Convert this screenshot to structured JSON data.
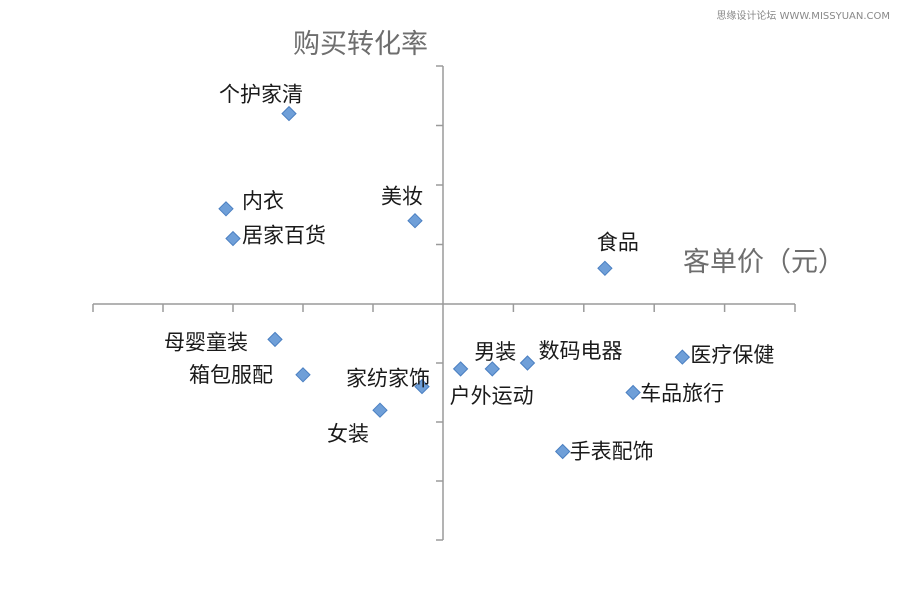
{
  "watermark": "思缘设计论坛 WWW.MISSYUAN.COM",
  "chart_data": {
    "type": "scatter",
    "title": "",
    "xlabel": "客单价（元）",
    "ylabel": "购买转化率",
    "xlim": [
      -5,
      5
    ],
    "ylim": [
      -4,
      4
    ],
    "grid": false,
    "legend": "none",
    "marker_color": "#6f9fd8",
    "axis_color": "#9a9a9a",
    "points": [
      {
        "label": "个护家清",
        "x": -2.2,
        "y": 3.2
      },
      {
        "label": "内衣",
        "x": -3.1,
        "y": 1.6
      },
      {
        "label": "居家百货",
        "x": -3.0,
        "y": 1.1
      },
      {
        "label": "美妆",
        "x": -0.4,
        "y": 1.4
      },
      {
        "label": "食品",
        "x": 2.3,
        "y": 0.6
      },
      {
        "label": "母婴童装",
        "x": -2.4,
        "y": -0.6
      },
      {
        "label": "箱包服配",
        "x": -2.0,
        "y": -1.2
      },
      {
        "label": "家纺家饰",
        "x": -0.3,
        "y": -1.4
      },
      {
        "label": "女装",
        "x": -0.9,
        "y": -1.8
      },
      {
        "label": "户外运动",
        "x": 0.25,
        "y": -1.1
      },
      {
        "label": "男装",
        "x": 0.7,
        "y": -1.1
      },
      {
        "label": "数码电器",
        "x": 1.2,
        "y": -1.0
      },
      {
        "label": "医疗保健",
        "x": 3.4,
        "y": -0.9
      },
      {
        "label": "车品旅行",
        "x": 2.7,
        "y": -1.5
      },
      {
        "label": "手表配饰",
        "x": 1.7,
        "y": -2.5
      }
    ]
  }
}
